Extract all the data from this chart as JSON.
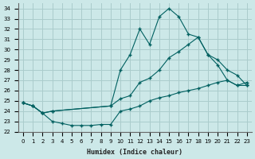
{
  "xlabel": "Humidex (Indice chaleur)",
  "bg_color": "#cce8e8",
  "grid_color": "#aacccc",
  "line_color": "#006060",
  "xlim": [
    -0.5,
    23.5
  ],
  "ylim": [
    22,
    34.5
  ],
  "xticks": [
    0,
    1,
    2,
    3,
    4,
    5,
    6,
    7,
    8,
    9,
    10,
    11,
    12,
    13,
    14,
    15,
    16,
    17,
    18,
    19,
    20,
    21,
    22,
    23
  ],
  "yticks": [
    22,
    23,
    24,
    25,
    26,
    27,
    28,
    29,
    30,
    31,
    32,
    33,
    34
  ],
  "series1_x": [
    0,
    1,
    2,
    3,
    4,
    5,
    6,
    7,
    8,
    9,
    10,
    11,
    12,
    13,
    14,
    15,
    16,
    17,
    18,
    19,
    20,
    21,
    22,
    23
  ],
  "series1_y": [
    24.8,
    24.5,
    23.8,
    23.0,
    22.8,
    22.6,
    22.6,
    22.6,
    22.7,
    22.7,
    24.0,
    24.2,
    24.5,
    25.0,
    25.3,
    25.5,
    25.8,
    26.0,
    26.2,
    26.5,
    26.8,
    27.0,
    26.5,
    26.8
  ],
  "series2_x": [
    0,
    1,
    2,
    3,
    9,
    10,
    11,
    12,
    13,
    14,
    15,
    16,
    17,
    18,
    19,
    20,
    21,
    22,
    23
  ],
  "series2_y": [
    24.8,
    24.5,
    23.8,
    24.0,
    24.5,
    25.2,
    25.5,
    26.8,
    27.2,
    28.0,
    29.2,
    29.8,
    30.5,
    31.2,
    29.5,
    29.0,
    28.0,
    27.5,
    26.5
  ],
  "series3_x": [
    0,
    1,
    2,
    3,
    9,
    10,
    11,
    12,
    13,
    14,
    15,
    16,
    17,
    18,
    19,
    20,
    21,
    22,
    23
  ],
  "series3_y": [
    24.8,
    24.5,
    23.8,
    24.0,
    24.5,
    28.0,
    29.5,
    32.0,
    30.5,
    33.2,
    34.0,
    33.2,
    31.5,
    31.2,
    29.5,
    28.5,
    27.0,
    26.5,
    26.5
  ]
}
